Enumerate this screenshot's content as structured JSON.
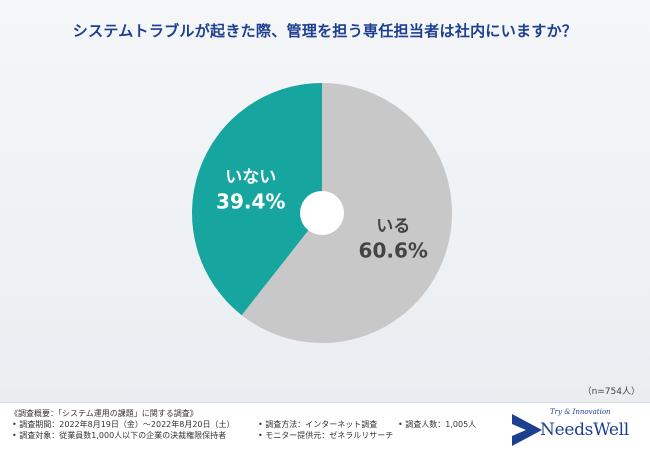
{
  "title": "システムトラブルが起きた際、管理を担う専任担当者は社内にいますか？",
  "sample_size": "（n=754人）",
  "chart_data": {
    "type": "pie",
    "title": "システムトラブルが起きた際、管理を担う専任担当者は社内にいますか？",
    "slices": [
      {
        "label": "いる",
        "value": 60.6,
        "value_label": "60.6%",
        "color": "#c8c8c8",
        "label_color": "#444444"
      },
      {
        "label": "いない",
        "value": 39.4,
        "value_label": "39.4%",
        "color": "#17a5a0",
        "label_color": "#ffffff"
      }
    ],
    "donut_hole": true
  },
  "footer": {
    "summary": "《調査概要：「システム運用の課題」に関する調査》",
    "period": "• 調査期間：2022年8月19日（金）〜2022年8月20日（土）",
    "method": "• 調査方法：インターネット調査",
    "count": "• 調査人数：1,005人",
    "target": "• 調査対象：従業員数1,000人以下の企業の決裁権限保持者",
    "monitor": "• モニター提供元：ゼネラルリサーチ"
  },
  "logo": {
    "tagline": "Try & Innovation",
    "name": "NeedsWell",
    "mark_color": "#1d3f8f"
  }
}
